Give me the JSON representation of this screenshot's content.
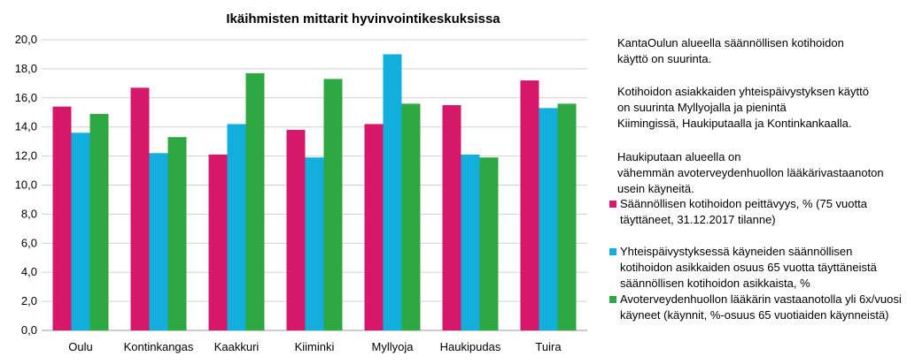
{
  "chart_data": {
    "type": "bar",
    "title": "Ikäihmisten mittarit hyvinvointikeskuksissa",
    "xlabel": "",
    "ylabel": "",
    "categories": [
      "Oulu",
      "Kontinkangas",
      "Kaakkuri",
      "Kiiminki",
      "Myllyoja",
      "Haukipudas",
      "Tuira"
    ],
    "yticks": [
      "0,0",
      "2,0",
      "4,0",
      "6,0",
      "8,0",
      "10,0",
      "12,0",
      "14,0",
      "16,0",
      "18,0",
      "20,0"
    ],
    "ylim": [
      0,
      20
    ],
    "grid": true,
    "legend_position": "right",
    "series": [
      {
        "name": "Säännöllisen kotihoidon peittävyys, % (75 vuotta täyttäneet, 31.12.2017 tilanne)",
        "color": "#d6186a",
        "values": [
          15.4,
          16.7,
          12.1,
          13.8,
          14.2,
          15.5,
          17.2
        ]
      },
      {
        "name": "Yhteispäivystyksessä käyneiden säännöllisen kotihoidon asikkaiden osuus 65 vuotta täyttäneistä säännöllisen kotihoidon asikkaista, %",
        "color": "#12aede",
        "values": [
          13.6,
          12.2,
          14.2,
          11.9,
          19.0,
          12.1,
          15.3
        ]
      },
      {
        "name": "Avoterveydenhuollon lääkärin vastaanotolla yli 6x/vuosi käyneet (käynnit, %-osuus 65 vuotiaiden käynneistä)",
        "color": "#2ea843",
        "values": [
          14.9,
          13.3,
          17.7,
          17.3,
          15.6,
          11.9,
          15.6
        ]
      }
    ]
  },
  "description": {
    "p1": "KantaOulun alueella säännöllisen kotihoidon\nkäyttö on suurinta.",
    "p2": "Kotihoidon asiakkaiden yhteispäivystyksen käyttö\non suurinta Myllyojalla ja pienintä\nKiimingissä, Haukiputaalla ja Kontinkankaalla.",
    "p3": "Haukiputaan alueella on\nvähemmän avoterveydenhuollon lääkärivastaanoton\nusein käyneitä."
  }
}
